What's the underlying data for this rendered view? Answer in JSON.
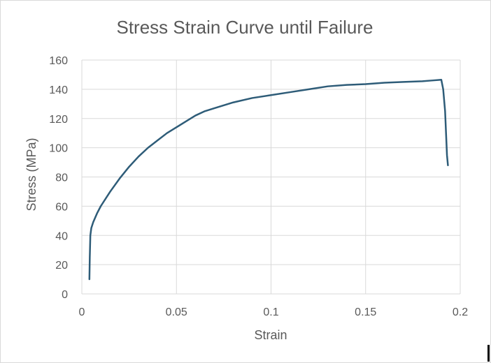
{
  "chart_data": {
    "type": "line",
    "title": "Stress Strain Curve until Failure",
    "xlabel": "Strain",
    "ylabel": "Stress (MPa)",
    "xlim": [
      0,
      0.2
    ],
    "ylim": [
      0,
      160
    ],
    "x_ticks": [
      "0",
      "0.05",
      "0.1",
      "0.15",
      "0.2"
    ],
    "y_ticks": [
      "0",
      "20",
      "40",
      "60",
      "80",
      "100",
      "120",
      "140",
      "160"
    ],
    "grid": true,
    "legend": "none",
    "line_color": "#2e5c78",
    "series": [
      {
        "x": [
          0.004,
          0.0042,
          0.0045,
          0.005,
          0.006,
          0.008,
          0.01,
          0.015,
          0.02,
          0.025,
          0.03,
          0.035,
          0.04,
          0.045,
          0.05,
          0.055,
          0.06,
          0.065,
          0.07,
          0.08,
          0.09,
          0.1,
          0.11,
          0.12,
          0.13,
          0.14,
          0.15,
          0.16,
          0.17,
          0.18,
          0.185,
          0.19,
          0.191,
          0.192,
          0.1925,
          0.193,
          0.1935
        ],
        "y": [
          10,
          25,
          40,
          45,
          49,
          55,
          60,
          70,
          79,
          87,
          94,
          100,
          105,
          110,
          114,
          118,
          122,
          125,
          127,
          131,
          134,
          136,
          138,
          140,
          142,
          143,
          143.5,
          144.5,
          145,
          145.5,
          146,
          146.5,
          140,
          125,
          110,
          95,
          88
        ]
      }
    ]
  }
}
